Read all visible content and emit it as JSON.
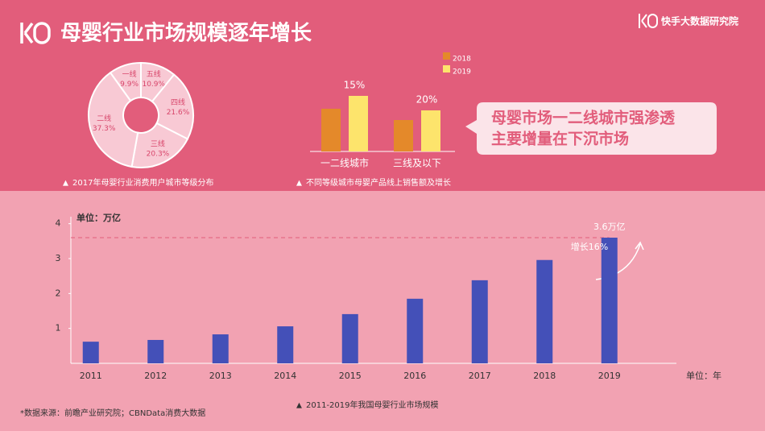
{
  "header": {
    "title": "母婴行业市场规模逐年增长",
    "brand": "快手大数据研究院"
  },
  "chart_data": [
    {
      "type": "pie",
      "donut": true,
      "caption": "2017年母婴行业消费用户城市等级分布",
      "categories": [
        "五线",
        "四线",
        "三线",
        "二线",
        "一线"
      ],
      "values": [
        10.9,
        21.6,
        20.3,
        37.3,
        9.9
      ],
      "value_labels": [
        "10.9%",
        "21.6%",
        "20.3%",
        "37.3%",
        "9.9%"
      ],
      "color": "#f8c9d4"
    },
    {
      "type": "bar",
      "caption": "不同等级城市母婴产品线上销售额及增长",
      "categories": [
        "一二线城市",
        "三线及以下"
      ],
      "series": [
        {
          "name": "2018",
          "color": "#e4892a",
          "values": [
            53,
            39
          ]
        },
        {
          "name": "2019",
          "color": "#fde46c",
          "values": [
            69,
            51
          ]
        }
      ],
      "annotations": [
        "15%",
        "20%"
      ],
      "callout": [
        "母婴市场一二线城市强渗透",
        "主要增量在下沉市场"
      ]
    },
    {
      "type": "bar",
      "caption": "2011-2019年我国母婴行业市场规模",
      "y_label": "单位：万亿",
      "x_label": "单位：年",
      "categories": [
        "2011",
        "2012",
        "2013",
        "2014",
        "2015",
        "2016",
        "2017",
        "2018",
        "2019"
      ],
      "values": [
        0.62,
        0.67,
        0.83,
        1.06,
        1.41,
        1.85,
        2.38,
        2.96,
        3.6
      ],
      "value_labels": [
        null,
        null,
        null,
        null,
        null,
        null,
        null,
        null,
        "3.6万亿"
      ],
      "annotations": [
        "增长16%"
      ],
      "color": "#4450b8",
      "ylim": [
        0,
        4.2
      ],
      "yticks": [
        1,
        2,
        3,
        4
      ],
      "reference_line": true
    }
  ],
  "footer": "*数据来源：前瞻产业研究院；CBNData消费大数据"
}
